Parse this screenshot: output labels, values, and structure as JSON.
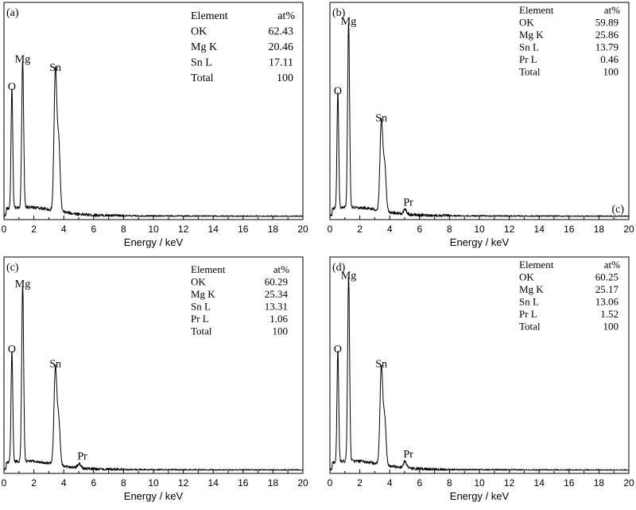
{
  "chart_data": [
    {
      "type": "line",
      "panel_label": "(a)",
      "xlabel": "Energy / keV",
      "xlim": [
        0,
        20
      ],
      "x_ticks": [
        "0",
        "2",
        "4",
        "6",
        "8",
        "10",
        "12",
        "14",
        "16",
        "18",
        "20"
      ],
      "table": {
        "headers": [
          "Element",
          "at%"
        ],
        "rows": [
          [
            "OK",
            "62.43"
          ],
          [
            "Mg K",
            "20.46"
          ],
          [
            "Sn L",
            "17.11"
          ],
          [
            "Total",
            "100"
          ]
        ]
      },
      "peak_labels": [
        {
          "text": "O",
          "x": 0.53
        },
        {
          "text": "Mg",
          "x": 1.25
        },
        {
          "text": "Sn",
          "x": 3.44
        }
      ],
      "peaks": [
        {
          "x": 0.53,
          "h": 0.57
        },
        {
          "x": 1.25,
          "h": 0.7
        },
        {
          "x": 3.44,
          "h": 0.66
        },
        {
          "x": 3.66,
          "h": 0.33
        }
      ]
    },
    {
      "type": "line",
      "panel_label": "(b)",
      "corner_label": "(c)",
      "xlabel": "Energy / keV",
      "xlim": [
        0,
        20
      ],
      "x_ticks": [
        "0",
        "2",
        "4",
        "6",
        "8",
        "10",
        "12",
        "14",
        "16",
        "18",
        "20"
      ],
      "table": {
        "headers": [
          "Element",
          "at%"
        ],
        "rows": [
          [
            "OK",
            "59.89"
          ],
          [
            "Mg K",
            "25.86"
          ],
          [
            "Sn L",
            "13.79"
          ],
          [
            "Pr L",
            "0.46"
          ],
          [
            "Total",
            "100"
          ]
        ]
      },
      "peak_labels": [
        {
          "text": "O",
          "x": 0.53
        },
        {
          "text": "Mg",
          "x": 1.25
        },
        {
          "text": "Sn",
          "x": 3.44
        },
        {
          "text": "Pr",
          "x": 5.03
        }
      ],
      "peaks": [
        {
          "x": 0.53,
          "h": 0.55
        },
        {
          "x": 1.25,
          "h": 0.88
        },
        {
          "x": 3.44,
          "h": 0.42
        },
        {
          "x": 3.66,
          "h": 0.22
        },
        {
          "x": 5.03,
          "h": 0.02
        }
      ]
    },
    {
      "type": "line",
      "panel_label": "(c)",
      "xlabel": "Energy / keV",
      "xlim": [
        0,
        20
      ],
      "x_ticks": [
        "0",
        "2",
        "4",
        "6",
        "8",
        "10",
        "12",
        "14",
        "16",
        "18",
        "20"
      ],
      "table": {
        "headers": [
          "Element",
          "at%"
        ],
        "rows": [
          [
            "OK",
            "60.29"
          ],
          [
            "Mg K",
            "25.34"
          ],
          [
            "Sn L",
            "13.31"
          ],
          [
            "Pr L",
            "1.06"
          ],
          [
            "Total",
            "100"
          ]
        ]
      },
      "peak_labels": [
        {
          "text": "O",
          "x": 0.53
        },
        {
          "text": "Mg",
          "x": 1.25
        },
        {
          "text": "Sn",
          "x": 3.44
        },
        {
          "text": "Pr",
          "x": 5.03
        }
      ],
      "peaks": [
        {
          "x": 0.53,
          "h": 0.53
        },
        {
          "x": 1.25,
          "h": 0.84
        },
        {
          "x": 3.44,
          "h": 0.46
        },
        {
          "x": 3.66,
          "h": 0.22
        },
        {
          "x": 5.03,
          "h": 0.02
        }
      ]
    },
    {
      "type": "line",
      "panel_label": "(d)",
      "xlabel": "Energy / keV",
      "xlim": [
        0,
        20
      ],
      "x_ticks": [
        "0",
        "2",
        "4",
        "6",
        "8",
        "10",
        "12",
        "14",
        "16",
        "18",
        "20"
      ],
      "table": {
        "headers": [
          "Element",
          "at%"
        ],
        "rows": [
          [
            "OK",
            "60.25"
          ],
          [
            "Mg K",
            "25.17"
          ],
          [
            "Sn L",
            "13.06"
          ],
          [
            "Pr L",
            "1.52"
          ],
          [
            "Total",
            "100"
          ]
        ]
      },
      "peak_labels": [
        {
          "text": "O",
          "x": 0.53
        },
        {
          "text": "Mg",
          "x": 1.25
        },
        {
          "text": "Sn",
          "x": 3.44
        },
        {
          "text": "Pr",
          "x": 5.03
        }
      ],
      "peaks": [
        {
          "x": 0.53,
          "h": 0.53
        },
        {
          "x": 1.25,
          "h": 0.88
        },
        {
          "x": 3.44,
          "h": 0.46
        },
        {
          "x": 3.66,
          "h": 0.22
        },
        {
          "x": 5.03,
          "h": 0.03
        }
      ]
    }
  ]
}
